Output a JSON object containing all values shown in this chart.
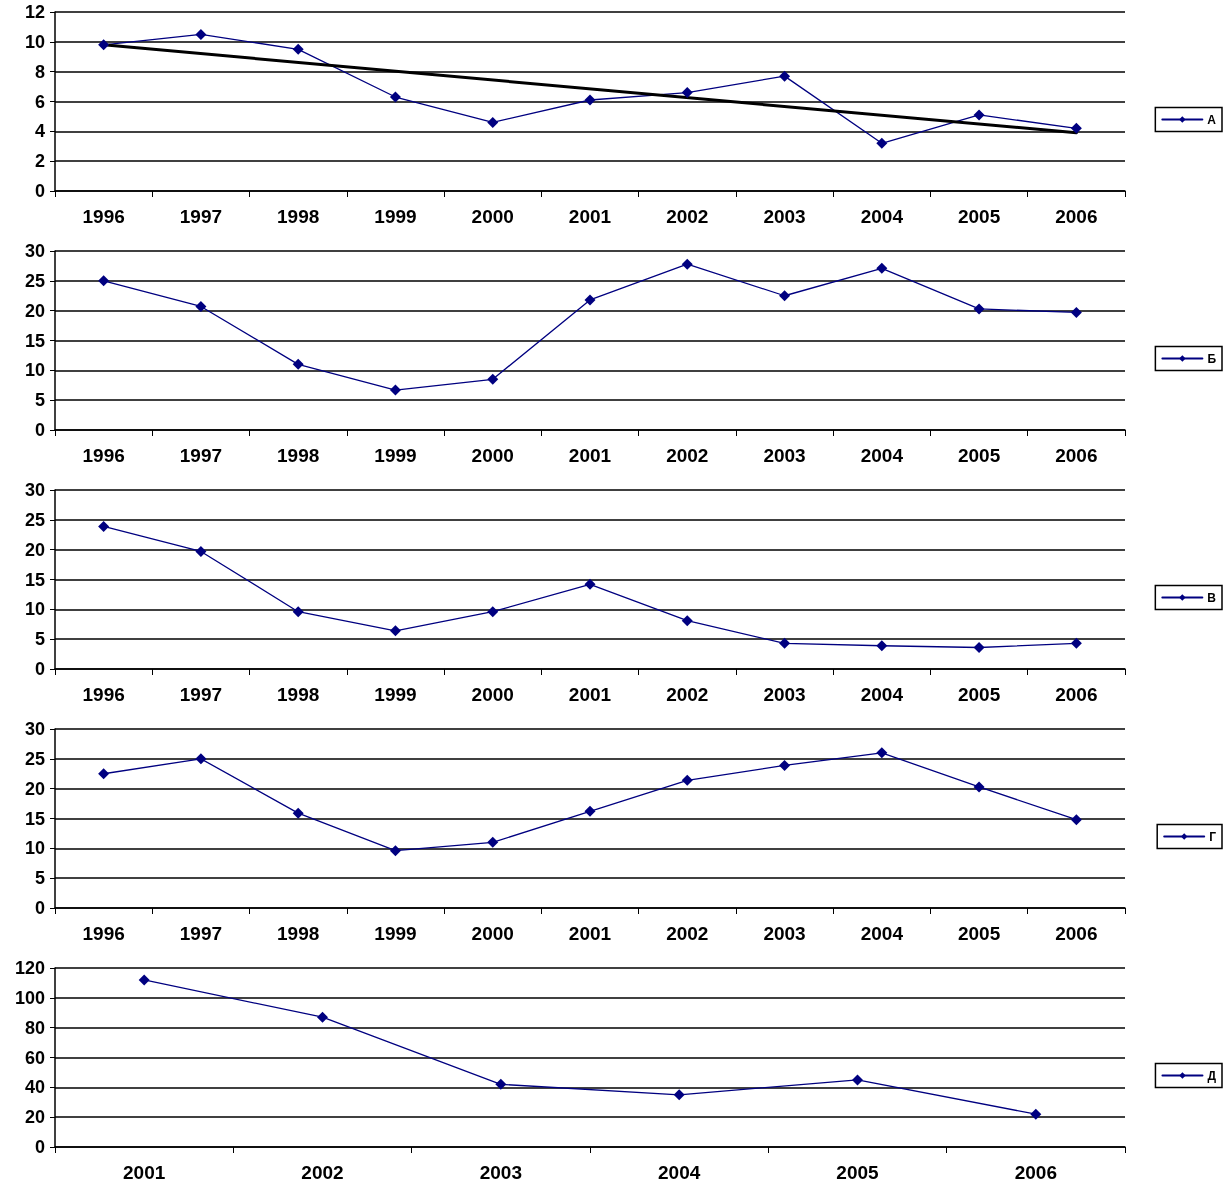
{
  "chart_data": [
    {
      "type": "line",
      "categories": [
        "1996",
        "1997",
        "1998",
        "1999",
        "2000",
        "2001",
        "2002",
        "2003",
        "2004",
        "2005",
        "2006"
      ],
      "ylim": [
        0,
        12
      ],
      "yticks": [
        0,
        2,
        4,
        6,
        8,
        10,
        12
      ],
      "grid": "y",
      "legend": "right",
      "marker": "diamond",
      "line_style": "solid",
      "series": [
        {
          "name": "А",
          "color": "#000080",
          "values": [
            9.8,
            10.5,
            9.5,
            6.3,
            4.6,
            6.1,
            6.6,
            7.7,
            3.2,
            5.1,
            4.2
          ]
        },
        {
          "color": "#000000",
          "marker": "none",
          "values": [
            9.8,
            null,
            null,
            null,
            null,
            null,
            null,
            null,
            null,
            null,
            3.9
          ]
        }
      ]
    },
    {
      "type": "line",
      "categories": [
        "1996",
        "1997",
        "1998",
        "1999",
        "2000",
        "2001",
        "2002",
        "2003",
        "2004",
        "2005",
        "2006"
      ],
      "ylim": [
        0,
        30
      ],
      "yticks": [
        0,
        5,
        10,
        15,
        20,
        25,
        30
      ],
      "grid": "y",
      "legend": "right",
      "marker": "diamond",
      "line_style": "solid",
      "series": [
        {
          "name": "Б",
          "color": "#000080",
          "values": [
            25,
            20.7,
            11,
            6.7,
            8.5,
            21.8,
            27.8,
            22.5,
            27.1,
            20.3,
            19.7
          ]
        }
      ]
    },
    {
      "type": "line",
      "categories": [
        "1996",
        "1997",
        "1998",
        "1999",
        "2000",
        "2001",
        "2002",
        "2003",
        "2004",
        "2005",
        "2006"
      ],
      "ylim": [
        0,
        30
      ],
      "yticks": [
        0,
        5,
        10,
        15,
        20,
        25,
        30
      ],
      "grid": "y",
      "legend": "right",
      "marker": "diamond",
      "line_style": "solid",
      "series": [
        {
          "name": "В",
          "color": "#000080",
          "values": [
            23.9,
            19.7,
            9.6,
            6.4,
            9.6,
            14.2,
            8.1,
            4.3,
            3.9,
            3.6,
            4.3
          ]
        }
      ]
    },
    {
      "type": "line",
      "categories": [
        "1996",
        "1997",
        "1998",
        "1999",
        "2000",
        "2001",
        "2002",
        "2003",
        "2004",
        "2005",
        "2006"
      ],
      "ylim": [
        0,
        30
      ],
      "yticks": [
        0,
        5,
        10,
        15,
        20,
        25,
        30
      ],
      "grid": "y",
      "legend": "right",
      "marker": "diamond",
      "line_style": "solid",
      "series": [
        {
          "name": "Г",
          "color": "#000080",
          "values": [
            22.5,
            25,
            15.9,
            9.6,
            11,
            16.2,
            21.4,
            23.9,
            26,
            20.3,
            14.8
          ]
        }
      ]
    },
    {
      "type": "line",
      "categories": [
        "2001",
        "2002",
        "2003",
        "2004",
        "2005",
        "2006"
      ],
      "ylim": [
        0,
        120
      ],
      "yticks": [
        0,
        20,
        40,
        60,
        80,
        100,
        120
      ],
      "grid": "y",
      "legend": "right",
      "marker": "diamond",
      "line_style": "solid",
      "series": [
        {
          "name": "Д",
          "color": "#000080",
          "values": [
            112,
            87,
            42,
            35,
            45,
            22
          ]
        }
      ]
    }
  ]
}
